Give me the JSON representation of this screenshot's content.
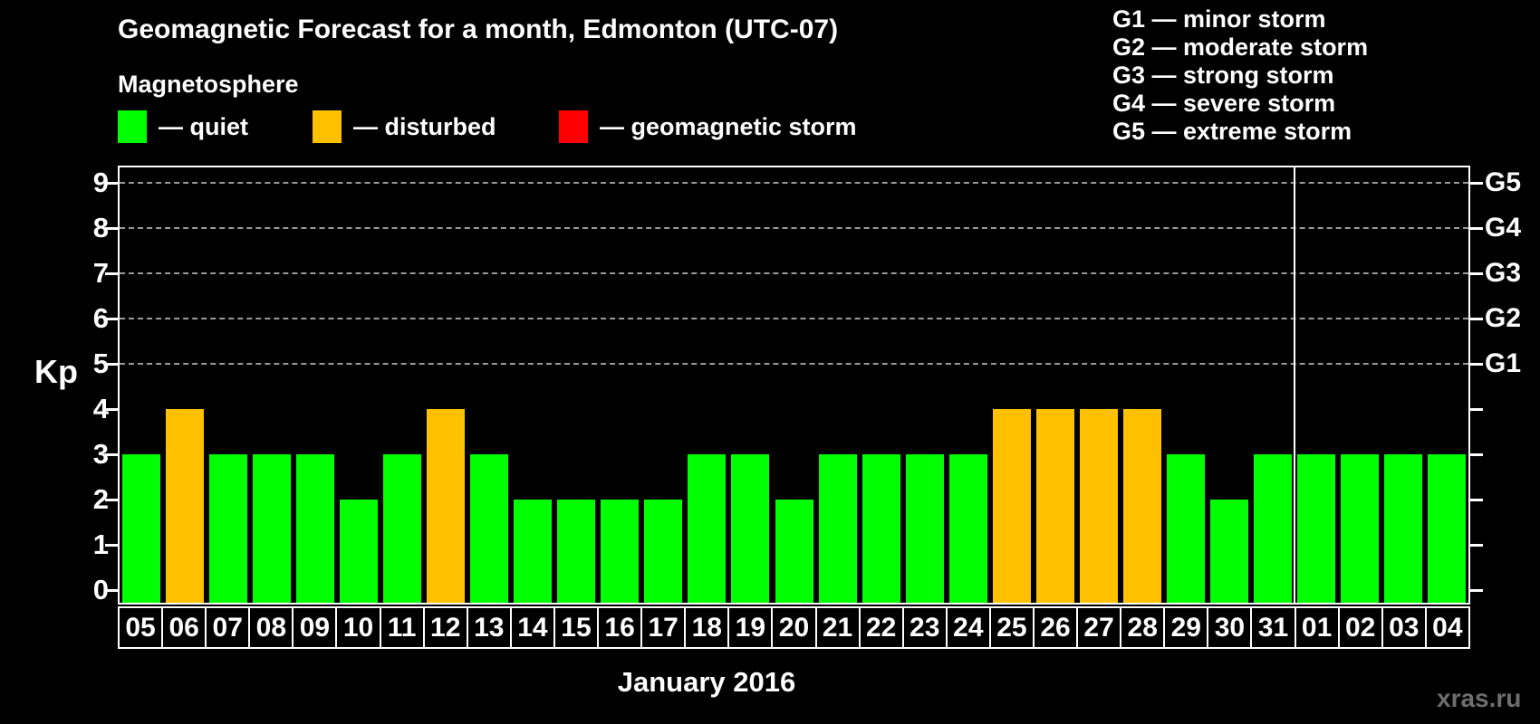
{
  "title": "Geomagnetic Forecast for a month, Edmonton (UTC-07)",
  "subtitle": "Magnetosphere",
  "legend": {
    "items": [
      {
        "name": "quiet",
        "label": "— quiet",
        "color": "#00ff00"
      },
      {
        "name": "disturbed",
        "label": "— disturbed",
        "color": "#ffc000"
      },
      {
        "name": "geomagnetic-storm",
        "label": "— geomagnetic storm",
        "color": "#ff0000"
      }
    ]
  },
  "storm_scale_legend": [
    "G1 — minor storm",
    "G2 — moderate storm",
    "G3 — strong storm",
    "G4 — severe storm",
    "G5 — extreme storm"
  ],
  "axes": {
    "y_label": "Kp",
    "y_ticks": [
      0,
      1,
      2,
      3,
      4,
      5,
      6,
      7,
      8,
      9
    ],
    "right_labels": [
      {
        "label": "G1",
        "kp": 5
      },
      {
        "label": "G2",
        "kp": 6
      },
      {
        "label": "G3",
        "kp": 7
      },
      {
        "label": "G4",
        "kp": 8
      },
      {
        "label": "G5",
        "kp": 9
      }
    ],
    "x_label": "January 2016"
  },
  "watermark": "xras.ru",
  "chart_data": {
    "type": "bar",
    "title": "Geomagnetic Forecast for a month, Edmonton (UTC-07)",
    "ylabel": "Kp",
    "xlabel": "January 2016",
    "ylim": [
      0,
      9.4
    ],
    "grid": "horizontal dashed gridlines at Kp 5,6,7,8,9",
    "gridline_kp": [
      5,
      6,
      7,
      8,
      9
    ],
    "legend_position": "top",
    "categories": [
      "05",
      "06",
      "07",
      "08",
      "09",
      "10",
      "11",
      "12",
      "13",
      "14",
      "15",
      "16",
      "17",
      "18",
      "19",
      "20",
      "21",
      "22",
      "23",
      "24",
      "25",
      "26",
      "27",
      "28",
      "29",
      "30",
      "31",
      "01",
      "02",
      "03",
      "04"
    ],
    "values": [
      3,
      4,
      3,
      3,
      3,
      2,
      3,
      4,
      3,
      2,
      2,
      2,
      2,
      3,
      3,
      2,
      3,
      3,
      3,
      3,
      4,
      4,
      4,
      4,
      3,
      2,
      3,
      3,
      3,
      3,
      3
    ],
    "statuses": [
      "quiet",
      "disturbed",
      "quiet",
      "quiet",
      "quiet",
      "quiet",
      "quiet",
      "disturbed",
      "quiet",
      "quiet",
      "quiet",
      "quiet",
      "quiet",
      "quiet",
      "quiet",
      "quiet",
      "quiet",
      "quiet",
      "quiet",
      "quiet",
      "disturbed",
      "disturbed",
      "disturbed",
      "disturbed",
      "quiet",
      "quiet",
      "quiet",
      "quiet",
      "quiet",
      "quiet",
      "quiet"
    ],
    "status_colors": {
      "quiet": "#00ff00",
      "disturbed": "#ffc000",
      "storm": "#ff0000"
    },
    "month_boundary_after_index": 26
  }
}
